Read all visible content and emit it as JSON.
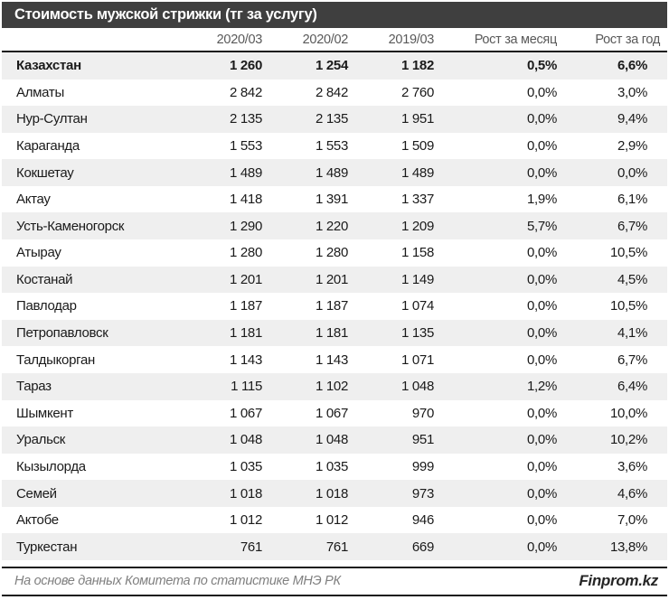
{
  "title": "Стоимость мужской стрижки (тг за услугу)",
  "columns": [
    "2020/03",
    "2020/02",
    "2019/03",
    "Рост за месяц",
    "Рост за год"
  ],
  "footer": {
    "source": "На основе данных Комитета по статистике МНЭ РК",
    "brand": "Finprom.kz"
  },
  "colors": {
    "title_bar": "#3f3f3f",
    "stripe": "#efefef",
    "separator": "#1a1a1a",
    "header_text": "#595959",
    "body_text": "#1a1a1a",
    "footer_text": "#7f7f7f"
  },
  "chart_data": {
    "type": "table",
    "title": "Стоимость мужской стрижки (тг за услугу)",
    "columns": [
      "",
      "2020/03",
      "2020/02",
      "2019/03",
      "Рост за месяц",
      "Рост за год"
    ],
    "rows": [
      {
        "region": "Казахстан",
        "values": [
          "1 260",
          "1 254",
          "1 182",
          "0,5%",
          "6,6%"
        ],
        "bold": true
      },
      {
        "region": "Алматы",
        "values": [
          "2 842",
          "2 842",
          "2 760",
          "0,0%",
          "3,0%"
        ]
      },
      {
        "region": "Нур-Султан",
        "values": [
          "2 135",
          "2 135",
          "1 951",
          "0,0%",
          "9,4%"
        ]
      },
      {
        "region": "Караганда",
        "values": [
          "1 553",
          "1 553",
          "1 509",
          "0,0%",
          "2,9%"
        ]
      },
      {
        "region": "Кокшетау",
        "values": [
          "1 489",
          "1 489",
          "1 489",
          "0,0%",
          "0,0%"
        ]
      },
      {
        "region": "Актау",
        "values": [
          "1 418",
          "1 391",
          "1 337",
          "1,9%",
          "6,1%"
        ]
      },
      {
        "region": "Усть-Каменогорск",
        "values": [
          "1 290",
          "1 220",
          "1 209",
          "5,7%",
          "6,7%"
        ]
      },
      {
        "region": "Атырау",
        "values": [
          "1 280",
          "1 280",
          "1 158",
          "0,0%",
          "10,5%"
        ]
      },
      {
        "region": "Костанай",
        "values": [
          "1 201",
          "1 201",
          "1 149",
          "0,0%",
          "4,5%"
        ]
      },
      {
        "region": "Павлодар",
        "values": [
          "1 187",
          "1 187",
          "1 074",
          "0,0%",
          "10,5%"
        ]
      },
      {
        "region": "Петропавловск",
        "values": [
          "1 181",
          "1 181",
          "1 135",
          "0,0%",
          "4,1%"
        ]
      },
      {
        "region": "Талдыкорган",
        "values": [
          "1 143",
          "1 143",
          "1 071",
          "0,0%",
          "6,7%"
        ]
      },
      {
        "region": "Тараз",
        "values": [
          "1 115",
          "1 102",
          "1 048",
          "1,2%",
          "6,4%"
        ]
      },
      {
        "region": "Шымкент",
        "values": [
          "1 067",
          "1 067",
          "970",
          "0,0%",
          "10,0%"
        ]
      },
      {
        "region": "Уральск",
        "values": [
          "1 048",
          "1 048",
          "951",
          "0,0%",
          "10,2%"
        ]
      },
      {
        "region": "Кызылорда",
        "values": [
          "1 035",
          "1 035",
          "999",
          "0,0%",
          "3,6%"
        ]
      },
      {
        "region": "Семей",
        "values": [
          "1 018",
          "1 018",
          "973",
          "0,0%",
          "4,6%"
        ]
      },
      {
        "region": "Актобе",
        "values": [
          "1 012",
          "1 012",
          "946",
          "0,0%",
          "7,0%"
        ]
      },
      {
        "region": "Туркестан",
        "values": [
          "761",
          "761",
          "669",
          "0,0%",
          "13,8%"
        ]
      }
    ]
  }
}
